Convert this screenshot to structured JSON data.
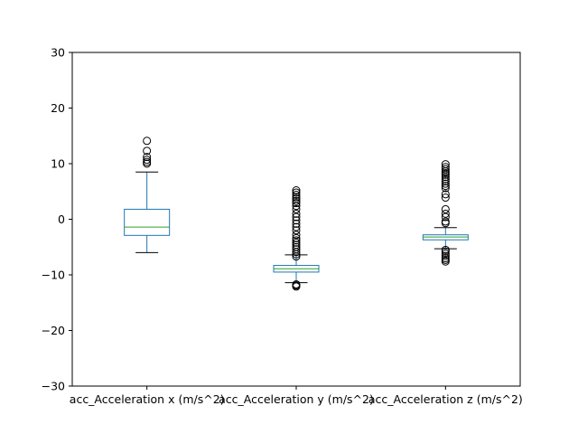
{
  "chart_data": {
    "type": "box",
    "title": "",
    "xlabel": "",
    "ylabel": "",
    "ylim": [
      -30,
      30
    ],
    "yticks": [
      -30,
      -20,
      -10,
      0,
      10,
      20,
      30
    ],
    "yticklabels": [
      "−30",
      "−20",
      "−10",
      "0",
      "10",
      "20",
      "30"
    ],
    "grid": false,
    "categories": [
      "acc_Acceleration x (m/s^2)",
      "acc_Acceleration y (m/s^2)",
      "acc_Acceleration z (m/s^2)"
    ],
    "boxes": [
      {
        "whisker_low": -6.0,
        "q1": -2.9,
        "median": -1.4,
        "q3": 1.8,
        "whisker_high": 8.5,
        "outliers": [
          10.0,
          10.3,
          10.7,
          11.2,
          12.3,
          14.1
        ]
      },
      {
        "whisker_low": -11.4,
        "q1": -9.5,
        "median": -8.9,
        "q3": -8.3,
        "whisker_high": -6.4,
        "outliers": [
          -12.1,
          -11.9,
          -11.7,
          -6.7,
          -6.3,
          -5.9,
          -5.4,
          -5.0,
          -4.6,
          -4.2,
          -3.8,
          -3.4,
          -2.8,
          -2.0,
          -1.4,
          -0.8,
          -0.2,
          0.4,
          1.0,
          1.8,
          2.4,
          2.9,
          3.3,
          3.7,
          4.0,
          4.4,
          4.8,
          5.2
        ]
      },
      {
        "whisker_low": -5.3,
        "q1": -3.7,
        "median": -3.2,
        "q3": -2.8,
        "whisker_high": -1.5,
        "outliers": [
          -7.6,
          -7.3,
          -7.0,
          -6.6,
          -6.2,
          -5.8,
          -5.5,
          -0.7,
          -0.4,
          0.4,
          1.0,
          1.8,
          3.9,
          4.5,
          5.6,
          6.0,
          6.4,
          6.8,
          7.2,
          7.6,
          8.0,
          8.3,
          8.6,
          9.0,
          9.4,
          9.9
        ]
      }
    ],
    "colors": {
      "box": "#1f77b4",
      "median": "#2ca02c",
      "whisker_cap": "#000000",
      "flier": "#000000",
      "axes": "#000000"
    }
  }
}
